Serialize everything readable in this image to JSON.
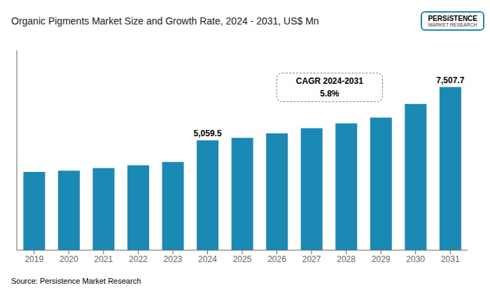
{
  "chart_data": {
    "type": "bar",
    "title": "Organic Pigments Market Size and Growth Rate, 2024 - 2031, US$ Mn",
    "categories": [
      "2019",
      "2020",
      "2021",
      "2022",
      "2023",
      "2024",
      "2025",
      "2026",
      "2027",
      "2028",
      "2029",
      "2030",
      "2031"
    ],
    "values": [
      3600,
      3660,
      3780,
      3910,
      4060,
      5059.5,
      5175,
      5380,
      5610,
      5840,
      6100,
      6730,
      7507.7
    ],
    "value_labels": [
      null,
      null,
      null,
      null,
      null,
      "5,059.5",
      null,
      null,
      null,
      null,
      null,
      null,
      "7,507.7"
    ],
    "data_labels": true,
    "color": "#1a8ab5",
    "ylim": [
      0,
      9200
    ],
    "tick_labels": "x",
    "grid": false,
    "annotations": [
      "CAGR 2024-2031",
      "5.8%",
      "Source: Persistence Market Research",
      "PERSiSTENCE",
      "MARKET RESEARCH"
    ]
  }
}
